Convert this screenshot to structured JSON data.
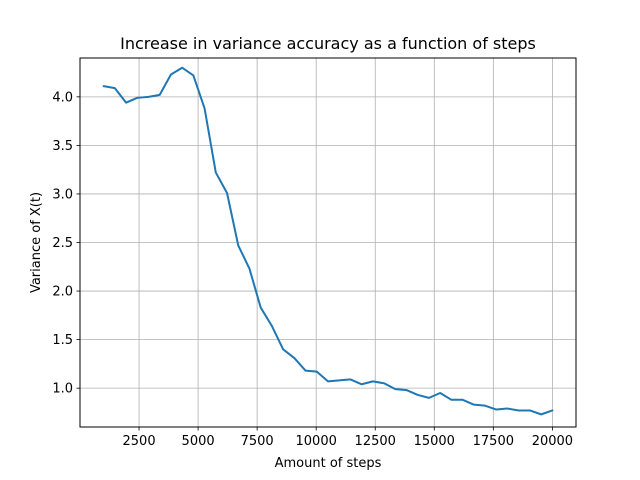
{
  "chart_data": {
    "type": "line",
    "title": "Increase in variance accuracy as a function of steps",
    "xlabel": "Amount of steps",
    "ylabel": "Variance of X(t)",
    "xlim": [
      0,
      21000
    ],
    "ylim": [
      0.6,
      4.4
    ],
    "xticks": [
      2500,
      5000,
      7500,
      10000,
      12500,
      15000,
      17500,
      20000
    ],
    "xtick_labels": [
      "2500",
      "5000",
      "7500",
      "10000",
      "12500",
      "15000",
      "17500",
      "20000"
    ],
    "yticks": [
      1.0,
      1.5,
      2.0,
      2.5,
      3.0,
      3.5,
      4.0
    ],
    "ytick_labels": [
      "1.0",
      "1.5",
      "2.0",
      "2.5",
      "3.0",
      "3.5",
      "4.0"
    ],
    "grid": true,
    "color": "#1f77b4",
    "series": [
      {
        "x": [
          1000,
          1475,
          1950,
          2425,
          2900,
          3375,
          3850,
          4325,
          4800,
          5275,
          5750,
          6225,
          6700,
          7175,
          7650,
          8125,
          8600,
          9075,
          9550,
          10025,
          10500,
          10975,
          11450,
          11925,
          12400,
          12875,
          13350,
          13825,
          14300,
          14775,
          15250,
          15725,
          16200,
          16675,
          17150,
          17625,
          18100,
          18575,
          19050,
          19525,
          20000
        ],
        "values": [
          4.11,
          4.09,
          3.94,
          3.99,
          4.0,
          4.02,
          4.23,
          4.3,
          4.22,
          3.88,
          3.22,
          3.01,
          2.47,
          2.23,
          1.83,
          1.64,
          1.4,
          1.31,
          1.18,
          1.17,
          1.07,
          1.08,
          1.09,
          1.04,
          1.07,
          1.05,
          0.99,
          0.98,
          0.93,
          0.9,
          0.95,
          0.88,
          0.88,
          0.83,
          0.82,
          0.78,
          0.79,
          0.77,
          0.77,
          0.73,
          0.77
        ]
      }
    ]
  }
}
